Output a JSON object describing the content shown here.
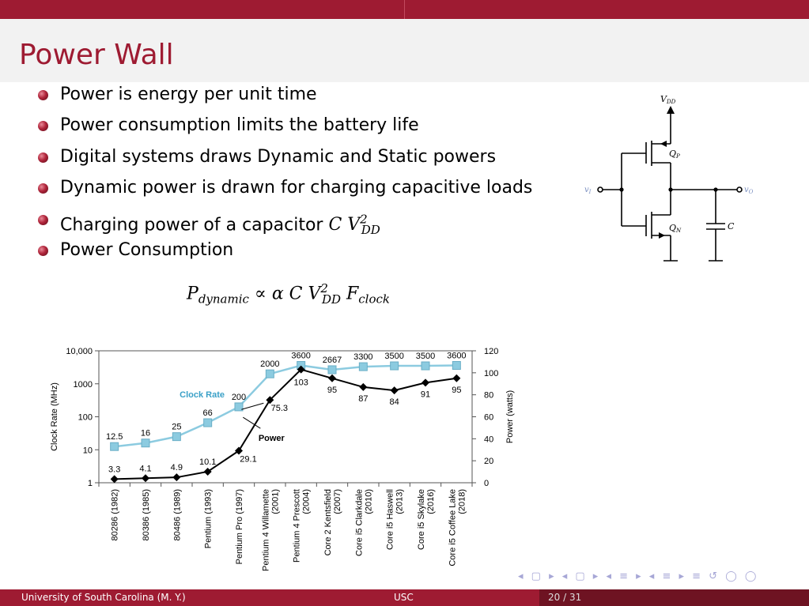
{
  "slide": {
    "title": "Power Wall",
    "bullets": [
      {
        "text": "Power is energy per unit time"
      },
      {
        "text": "Power consumption limits the battery life"
      },
      {
        "text": "Digital systems draws Dynamic and Static powers"
      },
      {
        "text": "Dynamic power is drawn for charging capacitive loads"
      },
      {
        "text": "Charging power of a capacitor ",
        "math_base": "C V",
        "math_sup": "2",
        "math_sub": "DD"
      },
      {
        "text": "Power Consumption"
      }
    ],
    "formula": {
      "lhs": "P",
      "lhs_sub": "dynamic",
      "rel": "∝",
      "alpha": "α C V",
      "v_sup": "2",
      "v_sub": "DD",
      "f": "F",
      "f_sub": "clock"
    }
  },
  "circuit": {
    "vdd": "V",
    "vdd_sub": "DD",
    "qp": "Q",
    "qp_sub": "P",
    "qn": "Q",
    "qn_sub": "N",
    "vi": "v",
    "vi_sub": "I",
    "vo": "v",
    "vo_sub": "O",
    "cap": "C"
  },
  "chart_data": {
    "type": "line",
    "categories": [
      "80286 (1982)",
      "80386 (1985)",
      "80486 (1989)",
      "Pentium (1993)",
      "Pentium Pro (1997)",
      "Pentium 4 Willamette (2001)",
      "Pentium 4 Prescott (2004)",
      "Core 2 Kentsfield (2007)",
      "Core i5 Clarkdale (2010)",
      "Core i5 Haswell (2013)",
      "Core i5 Skylake (2016)",
      "Core i5 Coffee Lake (2018)"
    ],
    "series": [
      {
        "name": "Clock Rate",
        "axis": "left",
        "log": true,
        "color": "#8ccbe0",
        "marker": "square",
        "values": [
          12.5,
          16,
          25,
          66,
          200,
          2000,
          3600,
          2667,
          3300,
          3500,
          3500,
          3600
        ]
      },
      {
        "name": "Power",
        "axis": "right",
        "color": "#000000",
        "marker": "diamond",
        "values": [
          3.3,
          4.1,
          4.9,
          10.1,
          29.1,
          75.3,
          103,
          95,
          87,
          84,
          91,
          95
        ]
      }
    ],
    "ylabel_left": "Clock Rate (MHz)",
    "ylabel_right": "Power (watts)",
    "yticks_left": [
      "1",
      "10",
      "100",
      "1000",
      "10,000"
    ],
    "yticks_right": [
      "0",
      "20",
      "40",
      "60",
      "80",
      "100",
      "120"
    ],
    "ylim_left": [
      1,
      10000
    ],
    "ylim_right": [
      0,
      120
    ],
    "clock_labels": [
      "12.5",
      "16",
      "25",
      "66",
      "200",
      "2000",
      "3600",
      "2667",
      "3300",
      "3500",
      "3500",
      "3600"
    ],
    "power_labels": [
      "3.3",
      "4.1",
      "4.9",
      "10.1",
      "29.1",
      "75.3",
      "103",
      "95",
      "87",
      "84",
      "91",
      "95"
    ]
  },
  "footer": {
    "left": "University of South Carolina (M. Y.)",
    "middle": "USC",
    "page": "20 / 31"
  },
  "nav": {
    "icons": "◂ ▢ ▸ ◂ ▢ ▸ ◂ ≡ ▸ ◂ ≡ ▸ ≡ ↺ ◯ ◯"
  }
}
